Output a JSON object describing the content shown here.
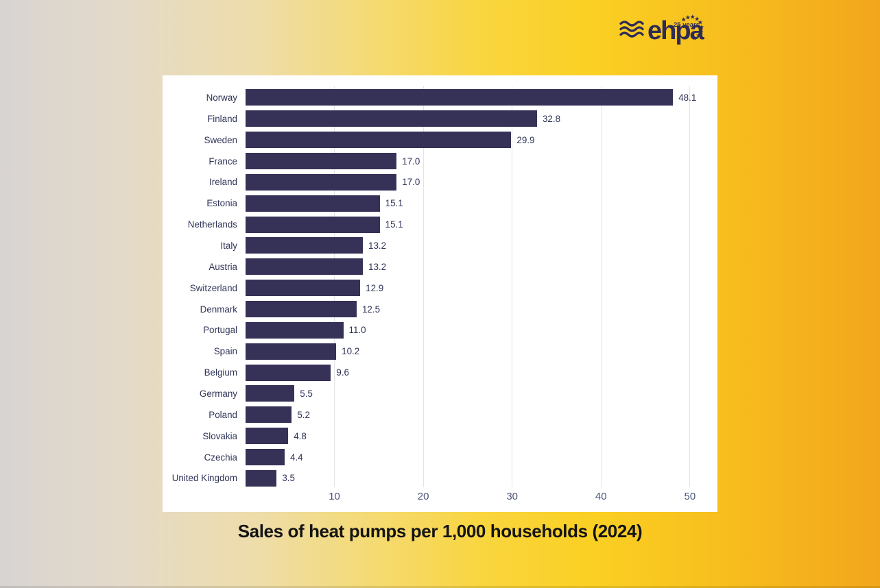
{
  "logo": {
    "name": "ehpa",
    "badge": "25 years",
    "star_glyph": "★",
    "color": "#2e2b55"
  },
  "chart_data": {
    "type": "bar",
    "orientation": "horizontal",
    "title": "Sales of heat pumps per 1,000 households (2024)",
    "categories": [
      "Norway",
      "Finland",
      "Sweden",
      "France",
      "Ireland",
      "Estonia",
      "Netherlands",
      "Italy",
      "Austria",
      "Switzerland",
      "Denmark",
      "Portugal",
      "Spain",
      "Belgium",
      "Germany",
      "Poland",
      "Slovakia",
      "Czechia",
      "United Kingdom"
    ],
    "values": [
      48.1,
      32.8,
      29.9,
      17.0,
      17.0,
      15.1,
      15.1,
      13.2,
      13.2,
      12.9,
      12.5,
      11.0,
      10.2,
      9.6,
      5.5,
      5.2,
      4.8,
      4.4,
      3.5
    ],
    "value_decimals": 1,
    "xticks": [
      10,
      20,
      30,
      40,
      50
    ],
    "xlim": [
      0,
      53.1
    ],
    "grid": "vertical-lines",
    "legend": "none",
    "colors": {
      "bar": "#353157",
      "label": "#2f3458",
      "tick": "#49537a",
      "grid": "#e3e3e8",
      "title": "#141414",
      "card": "#ffffff",
      "navy": "#2e2b55"
    }
  },
  "background": {
    "gradient": [
      "#d8d4d2",
      "#e4dac9",
      "#eeddaa",
      "#f5da70",
      "#f9d53e",
      "#fbd024",
      "#f8c11e",
      "#f2a61c"
    ]
  }
}
